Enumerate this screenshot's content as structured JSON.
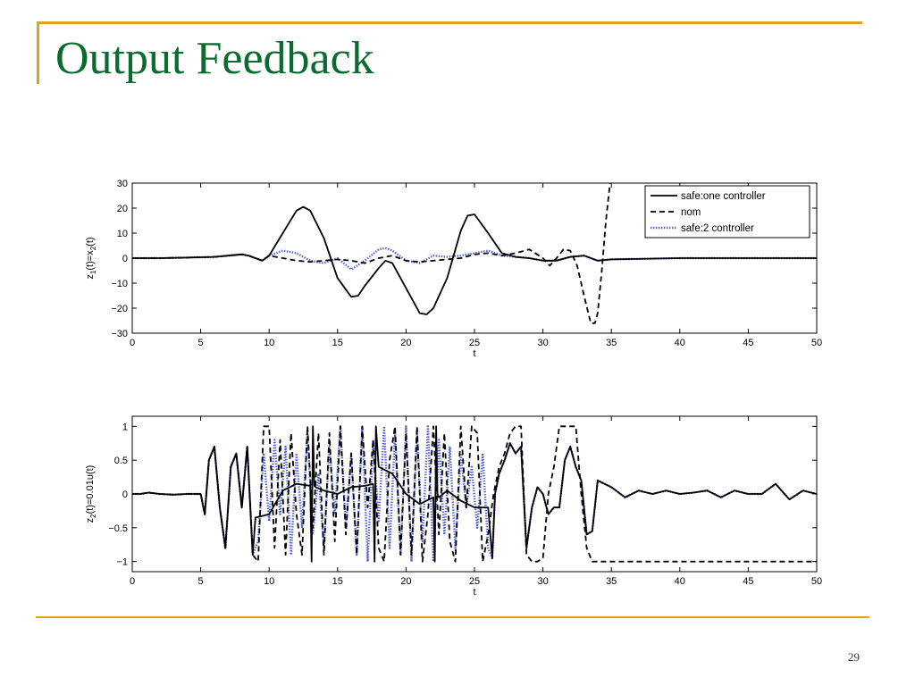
{
  "slide": {
    "title": "Output Feedback",
    "page_number": "29",
    "accent_color": "#d9a521",
    "title_color": "#0a6b2f"
  },
  "chart_data": [
    {
      "type": "line",
      "xlabel": "t",
      "ylabel": "z",
      "ylabel_sub1": "1",
      "ylabel_mid": "(t)=x",
      "ylabel_sub2": "2",
      "ylabel_end": "(t)",
      "xlim": [
        0,
        50
      ],
      "ylim": [
        -30,
        30
      ],
      "xticks": [
        0,
        5,
        10,
        15,
        20,
        25,
        30,
        35,
        40,
        45,
        50
      ],
      "yticks": [
        -30,
        -20,
        -10,
        0,
        10,
        20,
        30
      ],
      "grid": false,
      "legend_position": "top-right",
      "series": [
        {
          "name": "safe:one controller",
          "style": "solid",
          "color": "#000000",
          "x": [
            0,
            2,
            4,
            6,
            7,
            8,
            8.5,
            9,
            9.5,
            10,
            11,
            12,
            12.5,
            13,
            14,
            15,
            16,
            16.5,
            17,
            18,
            18.5,
            19,
            20,
            21,
            21.5,
            22,
            23,
            24,
            24.5,
            25,
            26,
            27,
            28,
            29,
            30,
            31,
            32,
            33,
            34,
            35,
            40,
            45,
            50
          ],
          "y": [
            0,
            0,
            0.2,
            0.5,
            1,
            1.5,
            1,
            0,
            -1,
            1,
            10,
            19,
            20.5,
            19,
            8,
            -8,
            -15.5,
            -15,
            -11,
            -4,
            -1,
            -2,
            -12,
            -22,
            -22.5,
            -20,
            -8,
            11,
            17,
            17.5,
            10,
            2,
            0.5,
            0,
            -1,
            -1,
            0.5,
            1,
            -1,
            -0.5,
            0,
            0,
            0
          ]
        },
        {
          "name": "nom",
          "style": "dashed",
          "color": "#000000",
          "x": [
            0,
            2,
            4,
            6,
            7,
            8,
            8.5,
            9,
            9.5,
            10,
            11,
            12,
            13,
            14,
            15,
            16,
            17,
            18,
            19,
            20,
            21,
            22,
            23,
            24,
            25,
            26,
            27,
            28,
            29,
            30,
            30.5,
            31,
            31.5,
            32,
            32.5,
            33,
            33.5,
            33.8,
            34,
            34.3,
            34.6,
            34.9
          ],
          "y": [
            0,
            0,
            0.2,
            0.5,
            1,
            1.5,
            1,
            0,
            -1,
            1,
            0,
            -1,
            -1.5,
            -1,
            -0.5,
            -1,
            -2,
            0,
            1,
            -1,
            -1.5,
            -1,
            -0.5,
            0,
            1.5,
            2,
            1,
            2,
            3.5,
            0,
            -3,
            0,
            3.5,
            3,
            -3,
            -15,
            -26,
            -26,
            -22,
            -5,
            15,
            30
          ]
        },
        {
          "name": "safe:2 controller",
          "style": "dotted",
          "color": "#4f5fd0",
          "x": [
            0,
            2,
            4,
            6,
            7,
            8,
            8.5,
            9,
            9.5,
            10,
            11,
            12,
            13,
            14,
            15,
            16,
            17,
            18,
            18.5,
            19,
            20,
            21,
            22,
            23,
            24,
            25,
            26,
            27,
            28,
            29,
            30,
            31,
            32,
            33,
            34,
            35,
            40,
            45,
            50
          ],
          "y": [
            0,
            0,
            0.2,
            0.5,
            1,
            1.5,
            1,
            0,
            -1,
            1,
            3,
            2,
            -1,
            -2,
            0,
            -4.5,
            -1,
            3.5,
            4,
            3,
            -1,
            -2,
            1,
            0.5,
            1,
            2,
            3,
            1,
            0.5,
            0,
            -1,
            -1,
            0.5,
            1,
            -1,
            -0.5,
            0,
            0,
            0
          ]
        }
      ]
    },
    {
      "type": "line",
      "xlabel": "t",
      "ylabel": "z",
      "ylabel_sub1": "2",
      "ylabel_mid": "(t)=0.01u(t)",
      "ylabel_sub2": "",
      "ylabel_end": "",
      "xlim": [
        0,
        50
      ],
      "ylim": [
        -1.15,
        1.15
      ],
      "xticks": [
        0,
        5,
        10,
        15,
        20,
        25,
        30,
        35,
        40,
        45,
        50
      ],
      "yticks": [
        -1,
        -0.5,
        0,
        0.5,
        1
      ],
      "grid": false,
      "series": [
        {
          "name": "safe:one controller",
          "style": "solid",
          "color": "#000000",
          "x": [
            0,
            0.6,
            1.2,
            2,
            3,
            4,
            5,
            5.3,
            5.6,
            6,
            6.4,
            6.8,
            7.2,
            7.6,
            8,
            8.4,
            8.8,
            9,
            10,
            11,
            12,
            13,
            13.1,
            13.2,
            13.3,
            13.4,
            14,
            15,
            16,
            17,
            17.6,
            17.7,
            17.8,
            18,
            19,
            20,
            21,
            22,
            22.1,
            22.2,
            22.3,
            22.4,
            23,
            24,
            25,
            26,
            26.3,
            26.5,
            26.8,
            27.2,
            27.6,
            28,
            28.4,
            28.8,
            29.2,
            29.6,
            30,
            30.4,
            30.8,
            31.2,
            31.6,
            32,
            32.4,
            32.8,
            33.2,
            33.6,
            34,
            35,
            36,
            37,
            38,
            39,
            40,
            41,
            42,
            43,
            44,
            45,
            46,
            47,
            48,
            49,
            50
          ],
          "y": [
            0,
            0,
            0.02,
            0,
            -0.01,
            0,
            0,
            -0.3,
            0.5,
            0.7,
            -0.2,
            -0.8,
            0.4,
            0.6,
            -0.2,
            0.7,
            -0.9,
            -0.35,
            -0.3,
            0.05,
            0.15,
            0.12,
            -1,
            1,
            0.12,
            0.1,
            0.05,
            0,
            0.1,
            0.12,
            0.15,
            -1,
            1,
            0.4,
            0.3,
            0,
            -0.15,
            -0.05,
            -1,
            1,
            0,
            -0.05,
            0.05,
            -0.1,
            -0.2,
            -0.2,
            -0.95,
            0,
            0.3,
            0.5,
            0.75,
            0.6,
            0.7,
            -0.8,
            -0.2,
            0.1,
            0,
            -0.3,
            -0.2,
            -0.2,
            0.5,
            0.7,
            0.4,
            0.2,
            -0.6,
            -0.55,
            0.2,
            0.1,
            -0.05,
            0.05,
            0,
            0.05,
            0,
            0.02,
            0.05,
            -0.05,
            0.05,
            0,
            0,
            0.15,
            -0.08,
            0.05,
            0
          ],
          "legend_pos": "top-right"
        },
        {
          "name": "nom",
          "style": "dashed",
          "color": "#000000",
          "x": [
            0,
            0.6,
            1.2,
            2,
            3,
            4,
            5,
            5.3,
            5.6,
            6,
            6.4,
            6.8,
            7.2,
            7.6,
            8,
            8.4,
            8.8,
            9.2,
            9.6,
            10,
            10.4,
            10.8,
            11.2,
            11.6,
            12,
            12.4,
            12.8,
            13.2,
            13.6,
            14,
            14.4,
            14.8,
            15.2,
            15.6,
            16,
            16.4,
            16.8,
            17.2,
            17.6,
            18,
            18.4,
            18.8,
            19.2,
            19.6,
            20,
            20.4,
            20.8,
            21.2,
            21.6,
            22,
            22.4,
            22.8,
            23.2,
            23.6,
            24,
            24.4,
            24.8,
            25.2,
            25.6,
            26,
            26.4,
            26.8,
            27.2,
            27.6,
            28,
            28.4,
            28.8,
            29.2,
            29.6,
            30,
            30.4,
            30.8,
            31.2,
            31.6,
            32,
            32.4,
            32.8,
            33.2,
            33.6,
            34,
            40,
            45,
            50
          ],
          "y": [
            0,
            0,
            0.02,
            0,
            -0.01,
            0,
            0,
            -0.3,
            0.5,
            0.7,
            -0.2,
            -0.8,
            0.4,
            0.6,
            -0.2,
            0.7,
            -0.9,
            -1,
            1,
            1,
            -0.8,
            0.8,
            -0.9,
            0.9,
            -0.3,
            -0.9,
            1,
            -0.5,
            0.9,
            -0.9,
            0.9,
            -0.7,
            1,
            -0.6,
            0.6,
            -0.9,
            1,
            -0.2,
            0.8,
            -0.8,
            -1,
            0.5,
            1,
            -0.9,
            0.9,
            -0.9,
            1,
            -1,
            -0.3,
            1,
            -0.6,
            0.9,
            -0.7,
            -1,
            1,
            -0.2,
            1,
            0.9,
            -1,
            -0.6,
            0,
            0.4,
            0.6,
            0.9,
            1,
            1,
            -0.9,
            -1,
            -1,
            -0.95,
            0,
            0.4,
            1,
            1,
            1,
            1,
            0,
            -0.8,
            -1,
            -1,
            -1,
            -1,
            -1
          ]
        },
        {
          "name": "safe:2 controller",
          "style": "dotted",
          "color": "#4f5fd0",
          "x": [
            0,
            0.6,
            1.2,
            2,
            3,
            4,
            5,
            5.3,
            5.6,
            6,
            6.4,
            6.8,
            7.2,
            7.6,
            8,
            8.4,
            8.8,
            9.2,
            9.6,
            10,
            10.4,
            10.8,
            11.2,
            11.6,
            12,
            12.4,
            12.8,
            13.2,
            13.6,
            14,
            14.4,
            14.8,
            15.2,
            15.6,
            16,
            16.4,
            16.8,
            17.2,
            17.6,
            18,
            18.4,
            18.8,
            19.2,
            19.6,
            20,
            20.4,
            20.8,
            21.2,
            21.6,
            22,
            22.4,
            22.8,
            23.2,
            23.6,
            24,
            24.4,
            24.8,
            25.2,
            25.6,
            26,
            26.3,
            26.5,
            26.8,
            27.2,
            27.6,
            28,
            28.4,
            28.8,
            29.2,
            29.6,
            30,
            30.4,
            30.8,
            31.2,
            31.6,
            32,
            32.4,
            32.8,
            33.2,
            33.6,
            34,
            35,
            36,
            37,
            38,
            39,
            40,
            41,
            42,
            43,
            44,
            45,
            46,
            47,
            48,
            49,
            50
          ],
          "y": [
            0,
            0,
            0.02,
            0,
            -0.01,
            0,
            0,
            -0.3,
            0.5,
            0.7,
            -0.2,
            -0.8,
            0.4,
            0.6,
            -0.2,
            0.7,
            -0.9,
            -0.7,
            0.6,
            -0.4,
            0.8,
            -0.3,
            0.7,
            -0.9,
            0.6,
            -0.5,
            0.9,
            -0.6,
            0.3,
            -0.8,
            0.7,
            -0.3,
            1,
            -0.5,
            0.6,
            -0.9,
            1,
            -1,
            0.8,
            -0.4,
            1,
            -0.8,
            0.9,
            -0.9,
            1,
            -1,
            0.9,
            -0.7,
            1,
            -1,
            0.8,
            -0.6,
            0.7,
            -0.8,
            0.6,
            -0.2,
            0.4,
            -0.5,
            0.6,
            -0.8,
            -0.95,
            0,
            0.3,
            0.5,
            0.75,
            0.6,
            0.7,
            -0.8,
            -0.2,
            0.1,
            0,
            -0.3,
            -0.2,
            -0.2,
            0.5,
            0.7,
            0.4,
            0.2,
            -0.6,
            -0.55,
            0.2,
            0.1,
            -0.05,
            0.05,
            0,
            0.05,
            0,
            0.02,
            0.05,
            -0.05,
            0.05,
            0,
            0,
            0.15,
            -0.08,
            0.05,
            0
          ]
        }
      ]
    }
  ]
}
